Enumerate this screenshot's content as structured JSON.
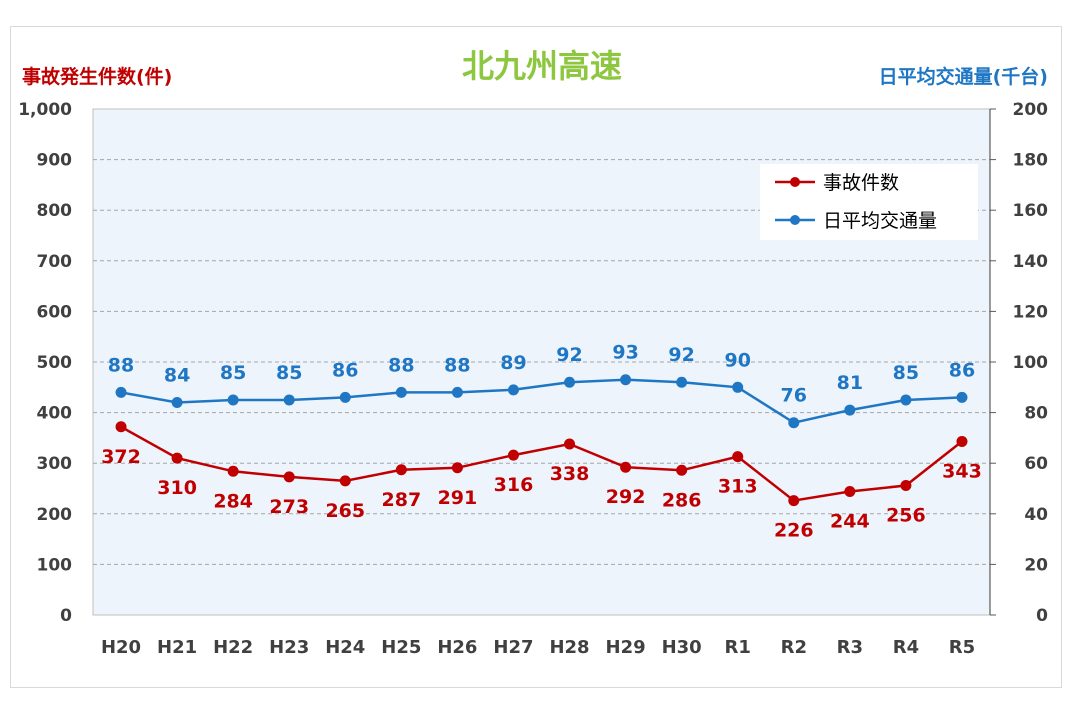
{
  "chart_data": {
    "type": "line",
    "title": "北九州高速",
    "ylabel_left": "事故発生件数(件)",
    "ylabel_right": "日平均交通量(千台)",
    "categories": [
      "H20",
      "H21",
      "H22",
      "H23",
      "H24",
      "H25",
      "H26",
      "H27",
      "H28",
      "H29",
      "H30",
      "R1",
      "R2",
      "R3",
      "R4",
      "R5"
    ],
    "y_left": {
      "range": [
        0,
        1000
      ],
      "ticks": [
        "0",
        "100",
        "200",
        "300",
        "400",
        "500",
        "600",
        "700",
        "800",
        "900",
        "1,000"
      ]
    },
    "y_right": {
      "range": [
        0,
        200
      ],
      "ticks": [
        "0",
        "20",
        "40",
        "60",
        "80",
        "100",
        "120",
        "140",
        "160",
        "180",
        "200"
      ]
    },
    "grid": true,
    "legend_position": "top-right",
    "series": [
      {
        "name": "事故件数",
        "axis": "left",
        "color": "#c00000",
        "values": [
          372,
          310,
          284,
          273,
          265,
          287,
          291,
          316,
          338,
          292,
          286,
          313,
          226,
          244,
          256,
          343
        ]
      },
      {
        "name": "日平均交通量",
        "axis": "right",
        "color": "#1f77c4",
        "values": [
          88,
          84,
          85,
          85,
          86,
          88,
          88,
          89,
          92,
          93,
          92,
          90,
          76,
          81,
          85,
          86
        ]
      }
    ]
  }
}
